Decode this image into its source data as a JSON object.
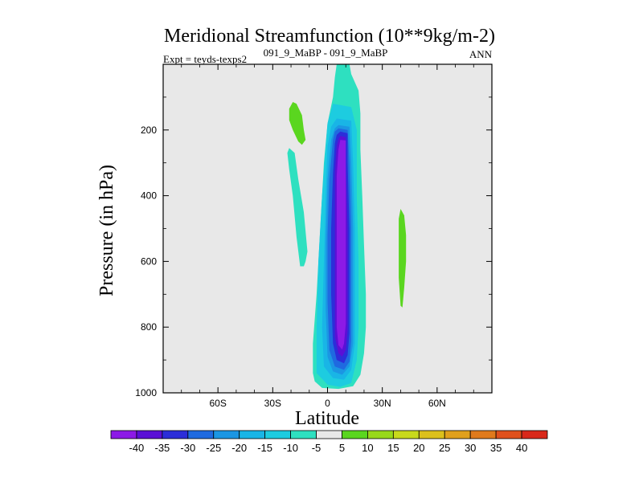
{
  "chart_data": {
    "type": "heatmap",
    "title": "Meridional Streamfunction (10**9kg/m-2)",
    "subtitle_left": "Expt = teyds-texps2",
    "subtitle_center": "091_9_MaBP - 091_9_MaBP",
    "subtitle_right": "ANN",
    "xlabel": "Latitude",
    "ylabel": "Pressure (in hPa)",
    "xlim": [
      -90,
      90
    ],
    "ylim": [
      1000,
      0
    ],
    "x_ticks": [
      {
        "value": -60,
        "label": "60S"
      },
      {
        "value": -30,
        "label": "30S"
      },
      {
        "value": 0,
        "label": "0"
      },
      {
        "value": 30,
        "label": "30N"
      },
      {
        "value": 60,
        "label": "60N"
      }
    ],
    "y_ticks": [
      {
        "value": 200,
        "label": "200"
      },
      {
        "value": 400,
        "label": "400"
      },
      {
        "value": 600,
        "label": "600"
      },
      {
        "value": 800,
        "label": "800"
      },
      {
        "value": 1000,
        "label": "1000"
      }
    ],
    "colorbar": {
      "labels": [
        "-40",
        "-35",
        "-30",
        "-25",
        "-20",
        "-15",
        "-10",
        "-5",
        "5",
        "10",
        "15",
        "20",
        "25",
        "30",
        "35",
        "40"
      ],
      "colors": [
        "#8c1ae6",
        "#5a10d6",
        "#2c2ed9",
        "#1f6ae0",
        "#1b96e3",
        "#19b5e6",
        "#1dcce0",
        "#2ee0c0",
        "#e8e8e8",
        "#5ad61f",
        "#98d91a",
        "#c8d91c",
        "#dcc01c",
        "#e0a01c",
        "#e07a1c",
        "#e0501c",
        "#d9281a"
      ]
    },
    "background_color": "#e8e8e8",
    "contours": [
      {
        "level": -5,
        "color": "#2ee0c0",
        "points": [
          [
            5,
            0
          ],
          [
            12,
            0
          ],
          [
            13,
            30
          ],
          [
            17,
            80
          ],
          [
            18,
            150
          ],
          [
            18,
            260
          ],
          [
            19,
            400
          ],
          [
            20,
            550
          ],
          [
            21,
            700
          ],
          [
            21,
            800
          ],
          [
            20,
            880
          ],
          [
            18,
            945
          ],
          [
            14,
            980
          ],
          [
            6,
            988
          ],
          [
            -3,
            985
          ],
          [
            -7,
            965
          ],
          [
            -8,
            940
          ],
          [
            -8,
            850
          ],
          [
            -6,
            700
          ],
          [
            -4,
            500
          ],
          [
            -2,
            300
          ],
          [
            0,
            180
          ],
          [
            3,
            100
          ],
          [
            4,
            40
          ]
        ]
      },
      {
        "level": -5,
        "color": "#2ee0c0",
        "points": [
          [
            -21,
            255
          ],
          [
            -18,
            270
          ],
          [
            -16,
            350
          ],
          [
            -13,
            450
          ],
          [
            -11,
            570
          ],
          [
            -12,
            600
          ],
          [
            -13,
            615
          ],
          [
            -15,
            615
          ],
          [
            -17,
            525
          ],
          [
            -19,
            400
          ],
          [
            -21,
            320
          ],
          [
            -22,
            270
          ]
        ]
      },
      {
        "level": -10,
        "color": "#1dcce0",
        "points": [
          [
            3,
            120
          ],
          [
            13,
            130
          ],
          [
            16,
            200
          ],
          [
            16,
            400
          ],
          [
            17,
            600
          ],
          [
            17,
            800
          ],
          [
            16,
            900
          ],
          [
            13,
            970
          ],
          [
            7,
            982
          ],
          [
            0,
            975
          ],
          [
            -6,
            940
          ],
          [
            -6,
            800
          ],
          [
            -5,
            600
          ],
          [
            -3,
            400
          ],
          [
            -1,
            250
          ],
          [
            0,
            180
          ]
        ]
      },
      {
        "level": -15,
        "color": "#19b5e6",
        "points": [
          [
            5,
            165
          ],
          [
            13,
            172
          ],
          [
            14,
            300
          ],
          [
            15,
            500
          ],
          [
            15,
            700
          ],
          [
            15,
            850
          ],
          [
            13,
            930
          ],
          [
            9,
            960
          ],
          [
            3,
            955
          ],
          [
            -2,
            920
          ],
          [
            -3,
            800
          ],
          [
            -2,
            600
          ],
          [
            -1,
            400
          ],
          [
            0,
            250
          ],
          [
            2,
            190
          ]
        ]
      },
      {
        "level": -20,
        "color": "#1b96e3",
        "points": [
          [
            6,
            185
          ],
          [
            12,
            190
          ],
          [
            13,
            300
          ],
          [
            14,
            500
          ],
          [
            14,
            700
          ],
          [
            14,
            850
          ],
          [
            12,
            920
          ],
          [
            8,
            945
          ],
          [
            3,
            935
          ],
          [
            0,
            890
          ],
          [
            -1,
            750
          ],
          [
            -1,
            550
          ],
          [
            0,
            350
          ],
          [
            2,
            230
          ],
          [
            4,
            195
          ]
        ]
      },
      {
        "level": -25,
        "color": "#1f6ae0",
        "points": [
          [
            6,
            195
          ],
          [
            11,
            200
          ],
          [
            12,
            300
          ],
          [
            13,
            500
          ],
          [
            13,
            700
          ],
          [
            13,
            840
          ],
          [
            12,
            905
          ],
          [
            9,
            930
          ],
          [
            4,
            920
          ],
          [
            1,
            870
          ],
          [
            0,
            720
          ],
          [
            0,
            520
          ],
          [
            1,
            350
          ],
          [
            3,
            230
          ],
          [
            4,
            205
          ]
        ]
      },
      {
        "level": -30,
        "color": "#2c2ed9",
        "points": [
          [
            7,
            205
          ],
          [
            11,
            210
          ],
          [
            11,
            300
          ],
          [
            12,
            500
          ],
          [
            12,
            700
          ],
          [
            12,
            820
          ],
          [
            11,
            885
          ],
          [
            9,
            910
          ],
          [
            5,
            900
          ],
          [
            3,
            850
          ],
          [
            2,
            700
          ],
          [
            2,
            500
          ],
          [
            3,
            330
          ],
          [
            4,
            240
          ],
          [
            5,
            215
          ]
        ]
      },
      {
        "level": -35,
        "color": "#5a10d6",
        "points": [
          [
            7,
            218
          ],
          [
            10,
            222
          ],
          [
            10,
            300
          ],
          [
            11,
            500
          ],
          [
            11,
            700
          ],
          [
            11,
            810
          ],
          [
            10,
            870
          ],
          [
            8,
            890
          ],
          [
            6,
            880
          ],
          [
            4,
            830
          ],
          [
            4,
            700
          ],
          [
            4,
            500
          ],
          [
            4,
            330
          ],
          [
            5,
            250
          ],
          [
            6,
            228
          ]
        ]
      },
      {
        "level": -40,
        "color": "#8c1ae6",
        "points": [
          [
            7,
            230
          ],
          [
            10,
            232
          ],
          [
            10,
            320
          ],
          [
            10,
            480
          ],
          [
            10,
            650
          ],
          [
            10,
            790
          ],
          [
            9,
            850
          ],
          [
            8,
            868
          ],
          [
            6,
            855
          ],
          [
            5,
            800
          ],
          [
            5,
            650
          ],
          [
            5,
            480
          ],
          [
            5,
            340
          ],
          [
            6,
            260
          ]
        ]
      },
      {
        "level": 5,
        "color": "#5ad61f",
        "points": [
          [
            -19,
            115
          ],
          [
            -17,
            120
          ],
          [
            -14,
            155
          ],
          [
            -13,
            200
          ],
          [
            -12,
            230
          ],
          [
            -14,
            245
          ],
          [
            -16,
            235
          ],
          [
            -19,
            200
          ],
          [
            -21,
            170
          ],
          [
            -21,
            135
          ]
        ]
      },
      {
        "level": 5,
        "color": "#5ad61f",
        "points": [
          [
            40,
            440
          ],
          [
            42,
            460
          ],
          [
            43,
            520
          ],
          [
            43,
            600
          ],
          [
            42,
            680
          ],
          [
            41,
            740
          ],
          [
            40,
            735
          ],
          [
            39,
            650
          ],
          [
            39,
            550
          ],
          [
            39,
            470
          ]
        ]
      }
    ]
  }
}
